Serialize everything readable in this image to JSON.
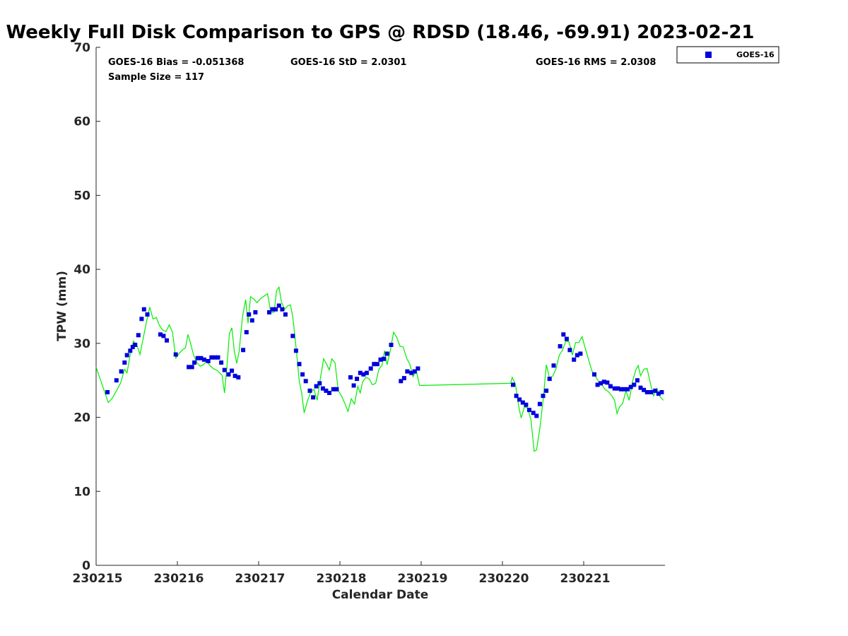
{
  "chart_data": {
    "type": "scatter",
    "title": "Weekly Full Disk Comparison to GPS @ RDSD (18.46, -69.91) 2023-02-21",
    "xlabel": "Calendar Date",
    "ylabel": "TPW (mm)",
    "xlim": [
      230215,
      230222
    ],
    "ylim": [
      0,
      70
    ],
    "x_ticks": [
      "230215",
      "230216",
      "230217",
      "230218",
      "230219",
      "230220",
      "230221"
    ],
    "y_ticks": [
      "0",
      "10",
      "20",
      "30",
      "40",
      "50",
      "60",
      "70"
    ],
    "grid": false,
    "legend_position": "outside-top-right",
    "stats": {
      "bias": "GOES-16 Bias = -0.051368",
      "std": "GOES-16 StD = 2.0301",
      "rms": "GOES-16 RMS = 2.0308",
      "sample_size": "Sample Size = 117"
    },
    "series": [
      {
        "name": "GOES-16",
        "marker": "square",
        "color": "#0000dd",
        "points": [
          [
            230215.14,
            23.4
          ],
          [
            230215.25,
            25.0
          ],
          [
            230215.31,
            26.2
          ],
          [
            230215.35,
            27.4
          ],
          [
            230215.38,
            28.4
          ],
          [
            230215.42,
            29.0
          ],
          [
            230215.45,
            29.5
          ],
          [
            230215.48,
            29.8
          ],
          [
            230215.52,
            31.1
          ],
          [
            230215.56,
            33.3
          ],
          [
            230215.59,
            34.6
          ],
          [
            230215.63,
            33.9
          ],
          [
            230215.79,
            31.2
          ],
          [
            230215.83,
            31.0
          ],
          [
            230215.87,
            30.4
          ],
          [
            230215.98,
            28.5
          ],
          [
            230216.14,
            26.8
          ],
          [
            230216.18,
            26.8
          ],
          [
            230216.21,
            27.4
          ],
          [
            230216.25,
            28.0
          ],
          [
            230216.29,
            28.0
          ],
          [
            230216.33,
            27.8
          ],
          [
            230216.38,
            27.6
          ],
          [
            230216.42,
            28.1
          ],
          [
            230216.46,
            28.1
          ],
          [
            230216.5,
            28.1
          ],
          [
            230216.54,
            27.4
          ],
          [
            230216.58,
            26.4
          ],
          [
            230216.63,
            25.8
          ],
          [
            230216.67,
            26.3
          ],
          [
            230216.71,
            25.6
          ],
          [
            230216.75,
            25.4
          ],
          [
            230216.81,
            29.1
          ],
          [
            230216.85,
            31.5
          ],
          [
            230216.88,
            33.9
          ],
          [
            230216.92,
            33.1
          ],
          [
            230216.96,
            34.2
          ],
          [
            230217.13,
            34.2
          ],
          [
            230217.17,
            34.6
          ],
          [
            230217.21,
            34.6
          ],
          [
            230217.25,
            35.1
          ],
          [
            230217.29,
            34.6
          ],
          [
            230217.33,
            33.9
          ],
          [
            230217.42,
            31.0
          ],
          [
            230217.46,
            29.0
          ],
          [
            230217.5,
            27.2
          ],
          [
            230217.54,
            25.8
          ],
          [
            230217.58,
            24.9
          ],
          [
            230217.63,
            23.6
          ],
          [
            230217.67,
            22.7
          ],
          [
            230217.71,
            24.2
          ],
          [
            230217.75,
            24.6
          ],
          [
            230217.79,
            23.9
          ],
          [
            230217.83,
            23.6
          ],
          [
            230217.87,
            23.3
          ],
          [
            230217.92,
            23.8
          ],
          [
            230217.96,
            23.8
          ],
          [
            230218.13,
            25.4
          ],
          [
            230218.17,
            24.3
          ],
          [
            230218.21,
            25.2
          ],
          [
            230218.25,
            26.0
          ],
          [
            230218.29,
            25.8
          ],
          [
            230218.33,
            26.0
          ],
          [
            230218.38,
            26.6
          ],
          [
            230218.42,
            27.2
          ],
          [
            230218.46,
            27.2
          ],
          [
            230218.5,
            27.8
          ],
          [
            230218.54,
            27.9
          ],
          [
            230218.58,
            28.6
          ],
          [
            230218.63,
            29.8
          ],
          [
            230218.75,
            24.9
          ],
          [
            230218.79,
            25.3
          ],
          [
            230218.83,
            26.2
          ],
          [
            230218.88,
            26.0
          ],
          [
            230218.92,
            26.2
          ],
          [
            230218.96,
            26.6
          ],
          [
            230220.13,
            24.4
          ],
          [
            230220.17,
            22.9
          ],
          [
            230220.21,
            22.4
          ],
          [
            230220.25,
            22.0
          ],
          [
            230220.29,
            21.7
          ],
          [
            230220.33,
            21.0
          ],
          [
            230220.38,
            20.6
          ],
          [
            230220.42,
            20.2
          ],
          [
            230220.46,
            21.8
          ],
          [
            230220.5,
            22.9
          ],
          [
            230220.54,
            23.6
          ],
          [
            230220.58,
            25.2
          ],
          [
            230220.63,
            27.0
          ],
          [
            230220.71,
            29.6
          ],
          [
            230220.75,
            31.2
          ],
          [
            230220.79,
            30.6
          ],
          [
            230220.83,
            29.1
          ],
          [
            230220.88,
            27.8
          ],
          [
            230220.92,
            28.4
          ],
          [
            230220.96,
            28.6
          ],
          [
            230221.13,
            25.8
          ],
          [
            230221.17,
            24.4
          ],
          [
            230221.21,
            24.6
          ],
          [
            230221.25,
            24.8
          ],
          [
            230221.29,
            24.7
          ],
          [
            230221.33,
            24.2
          ],
          [
            230221.38,
            23.9
          ],
          [
            230221.42,
            23.9
          ],
          [
            230221.46,
            23.8
          ],
          [
            230221.5,
            23.8
          ],
          [
            230221.54,
            23.8
          ],
          [
            230221.58,
            24.1
          ],
          [
            230221.62,
            24.4
          ],
          [
            230221.66,
            25.0
          ],
          [
            230221.7,
            24.0
          ],
          [
            230221.74,
            23.7
          ],
          [
            230221.78,
            23.4
          ],
          [
            230221.83,
            23.4
          ],
          [
            230221.88,
            23.6
          ],
          [
            230221.92,
            23.2
          ],
          [
            230221.96,
            23.4
          ]
        ]
      },
      {
        "color": "#00ee00",
        "line": [
          [
            230215.0,
            26.8
          ],
          [
            230215.1,
            23.6
          ],
          [
            230215.15,
            22.0
          ],
          [
            230215.2,
            22.6
          ],
          [
            230215.25,
            23.6
          ],
          [
            230215.3,
            24.6
          ],
          [
            230215.35,
            26.5
          ],
          [
            230215.38,
            26.0
          ],
          [
            230215.42,
            28.5
          ],
          [
            230215.46,
            30.3
          ],
          [
            230215.5,
            29.8
          ],
          [
            230215.54,
            28.5
          ],
          [
            230215.58,
            30.7
          ],
          [
            230215.62,
            32.9
          ],
          [
            230215.66,
            34.9
          ],
          [
            230215.7,
            33.3
          ],
          [
            230215.74,
            33.5
          ],
          [
            230215.78,
            32.4
          ],
          [
            230215.82,
            31.8
          ],
          [
            230215.86,
            31.6
          ],
          [
            230215.9,
            32.5
          ],
          [
            230215.94,
            31.5
          ],
          [
            230215.98,
            28.0
          ],
          [
            230216.02,
            28.6
          ],
          [
            230216.06,
            29.1
          ],
          [
            230216.1,
            29.4
          ],
          [
            230216.13,
            31.2
          ],
          [
            230216.16,
            30.1
          ],
          [
            230216.2,
            28.4
          ],
          [
            230216.24,
            27.4
          ],
          [
            230216.28,
            26.9
          ],
          [
            230216.32,
            27.1
          ],
          [
            230216.36,
            27.6
          ],
          [
            230216.4,
            27.0
          ],
          [
            230216.44,
            26.6
          ],
          [
            230216.48,
            26.4
          ],
          [
            230216.52,
            26.0
          ],
          [
            230216.55,
            25.7
          ],
          [
            230216.58,
            23.3
          ],
          [
            230216.61,
            26.8
          ],
          [
            230216.64,
            31.3
          ],
          [
            230216.67,
            32.1
          ],
          [
            230216.7,
            29.0
          ],
          [
            230216.73,
            27.3
          ],
          [
            230216.76,
            28.9
          ],
          [
            230216.8,
            33.5
          ],
          [
            230216.84,
            35.9
          ],
          [
            230216.87,
            32.7
          ],
          [
            230216.9,
            36.3
          ],
          [
            230216.94,
            36.0
          ],
          [
            230216.98,
            35.5
          ],
          [
            230217.02,
            36.0
          ],
          [
            230217.07,
            36.4
          ],
          [
            230217.11,
            36.7
          ],
          [
            230217.15,
            34.2
          ],
          [
            230217.19,
            34.2
          ],
          [
            230217.22,
            37.1
          ],
          [
            230217.25,
            37.6
          ],
          [
            230217.28,
            35.6
          ],
          [
            230217.32,
            34.6
          ],
          [
            230217.36,
            35.1
          ],
          [
            230217.39,
            35.2
          ],
          [
            230217.42,
            33.6
          ],
          [
            230217.46,
            29.5
          ],
          [
            230217.5,
            24.9
          ],
          [
            230217.53,
            23.3
          ],
          [
            230217.56,
            20.6
          ],
          [
            230217.6,
            22.2
          ],
          [
            230217.64,
            23.4
          ],
          [
            230217.68,
            23.8
          ],
          [
            230217.72,
            22.3
          ],
          [
            230217.76,
            25.3
          ],
          [
            230217.8,
            27.9
          ],
          [
            230217.84,
            27.1
          ],
          [
            230217.87,
            26.4
          ],
          [
            230217.9,
            27.9
          ],
          [
            230217.94,
            27.4
          ],
          [
            230217.98,
            23.6
          ],
          [
            230218.02,
            22.9
          ],
          [
            230218.06,
            21.9
          ],
          [
            230218.1,
            20.8
          ],
          [
            230218.14,
            22.5
          ],
          [
            230218.18,
            21.8
          ],
          [
            230218.22,
            24.2
          ],
          [
            230218.25,
            23.3
          ],
          [
            230218.28,
            24.8
          ],
          [
            230218.32,
            25.4
          ],
          [
            230218.36,
            25.2
          ],
          [
            230218.4,
            24.4
          ],
          [
            230218.44,
            24.6
          ],
          [
            230218.48,
            26.5
          ],
          [
            230218.52,
            27.1
          ],
          [
            230218.55,
            29.0
          ],
          [
            230218.58,
            27.1
          ],
          [
            230218.62,
            29.0
          ],
          [
            230218.66,
            31.5
          ],
          [
            230218.7,
            30.8
          ],
          [
            230218.74,
            29.6
          ],
          [
            230218.78,
            29.5
          ],
          [
            230218.82,
            28.0
          ],
          [
            230218.86,
            27.2
          ],
          [
            230218.9,
            25.5
          ],
          [
            230218.94,
            26.3
          ],
          [
            230218.98,
            24.3
          ],
          [
            230220.1,
            24.6
          ],
          [
            230220.12,
            25.4
          ],
          [
            230220.16,
            24.5
          ],
          [
            230220.2,
            21.5
          ],
          [
            230220.23,
            19.9
          ],
          [
            230220.27,
            21.4
          ],
          [
            230220.31,
            21.3
          ],
          [
            230220.35,
            19.7
          ],
          [
            230220.39,
            15.4
          ],
          [
            230220.42,
            15.6
          ],
          [
            230220.46,
            18.5
          ],
          [
            230220.5,
            22.3
          ],
          [
            230220.54,
            27.1
          ],
          [
            230220.58,
            25.3
          ],
          [
            230220.62,
            25.6
          ],
          [
            230220.66,
            26.6
          ],
          [
            230220.7,
            28.4
          ],
          [
            230220.74,
            29.1
          ],
          [
            230220.78,
            30.3
          ],
          [
            230220.82,
            30.2
          ],
          [
            230220.86,
            28.4
          ],
          [
            230220.9,
            30.1
          ],
          [
            230220.94,
            30.1
          ],
          [
            230220.98,
            30.9
          ],
          [
            230221.02,
            29.3
          ],
          [
            230221.06,
            27.8
          ],
          [
            230221.1,
            26.3
          ],
          [
            230221.14,
            25.6
          ],
          [
            230221.18,
            24.9
          ],
          [
            230221.22,
            24.5
          ],
          [
            230221.26,
            23.8
          ],
          [
            230221.3,
            23.5
          ],
          [
            230221.34,
            23.0
          ],
          [
            230221.38,
            22.3
          ],
          [
            230221.41,
            20.5
          ],
          [
            230221.44,
            21.4
          ],
          [
            230221.48,
            21.9
          ],
          [
            230221.52,
            23.6
          ],
          [
            230221.56,
            22.3
          ],
          [
            230221.6,
            24.8
          ],
          [
            230221.64,
            26.4
          ],
          [
            230221.67,
            27.0
          ],
          [
            230221.7,
            25.6
          ],
          [
            230221.74,
            26.5
          ],
          [
            230221.78,
            26.6
          ],
          [
            230221.82,
            24.6
          ],
          [
            230221.86,
            22.9
          ],
          [
            230221.9,
            23.9
          ],
          [
            230221.94,
            22.8
          ],
          [
            230221.98,
            22.3
          ]
        ]
      }
    ]
  }
}
